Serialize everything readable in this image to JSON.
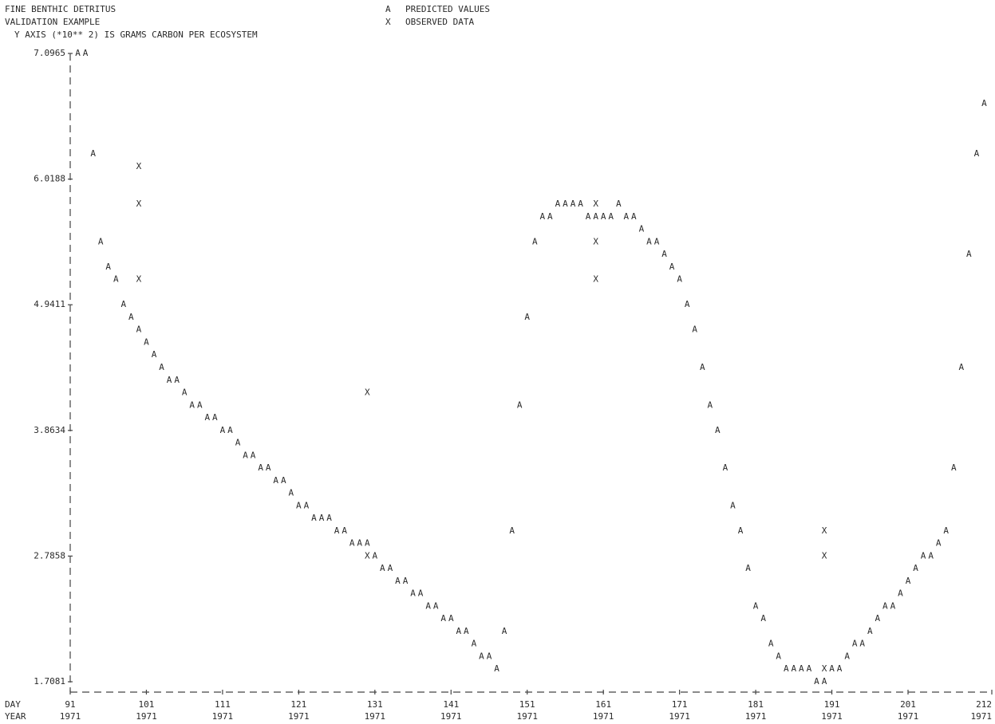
{
  "chart_data": {
    "type": "scatter",
    "title": "FINE BENTHIC DETRITUS",
    "subtitle": "VALIDATION EXAMPLE",
    "y_label": "Y AXIS (*10** 2) IS GRAMS CARBON PER ECOSYSTEM",
    "x_row_labels": [
      "DAY",
      "YEAR"
    ],
    "xlim": [
      91,
      212
    ],
    "xticks": [
      91,
      101,
      111,
      121,
      131,
      141,
      151,
      161,
      171,
      181,
      191,
      201,
      212
    ],
    "xtick_years": [
      "1971",
      "1971",
      "1971",
      "1971",
      "1971",
      "1971",
      "1971",
      "1971",
      "1971",
      "1971",
      "1971",
      "1971",
      "1971"
    ],
    "ylim": [
      1.7081,
      7.0965
    ],
    "yticks": [
      7.0965,
      6.0188,
      4.9411,
      3.8634,
      2.7858,
      1.7081
    ],
    "series": [
      {
        "name": "PREDICTED VALUES",
        "marker": "A",
        "color": "#2a2a2a",
        "x": [
          92,
          93,
          94,
          95,
          96,
          97,
          98,
          99,
          100,
          101,
          102,
          103,
          104,
          105,
          106,
          107,
          108,
          109,
          110,
          111,
          112,
          113,
          114,
          115,
          116,
          117,
          118,
          119,
          120,
          121,
          122,
          123,
          124,
          125,
          126,
          127,
          128,
          129,
          130,
          131,
          132,
          133,
          134,
          135,
          136,
          137,
          138,
          139,
          140,
          141,
          142,
          143,
          144,
          145,
          146,
          147,
          148,
          149,
          150,
          151,
          152,
          153,
          154,
          155,
          156,
          157,
          158,
          159,
          160,
          161,
          162,
          163,
          164,
          165,
          166,
          167,
          168,
          169,
          170,
          171,
          172,
          173,
          174,
          175,
          176,
          177,
          178,
          179,
          180,
          181,
          182,
          183,
          184,
          185,
          186,
          187,
          188,
          189,
          190,
          191,
          192,
          193,
          194,
          195,
          196,
          197,
          198,
          199,
          200,
          201,
          202,
          203,
          204,
          205,
          206,
          207,
          208,
          209,
          210,
          211
        ],
        "values": [
          7.0965,
          7.0965,
          6.2343,
          5.48,
          5.2644,
          5.1567,
          4.9411,
          4.8334,
          4.7256,
          4.6178,
          4.51,
          4.4023,
          4.2945,
          4.2945,
          4.1867,
          4.0789,
          4.0789,
          3.9712,
          3.9712,
          3.8634,
          3.8634,
          3.7556,
          3.6479,
          3.6479,
          3.5401,
          3.5401,
          3.4323,
          3.4323,
          3.3245,
          3.2168,
          3.2168,
          3.109,
          3.109,
          3.109,
          3.0012,
          3.0012,
          2.8935,
          2.8935,
          2.8935,
          2.7857,
          2.6779,
          2.6779,
          2.5702,
          2.5702,
          2.4624,
          2.4624,
          2.3546,
          2.3546,
          2.2468,
          2.2468,
          2.1391,
          2.1391,
          2.0313,
          1.9235,
          1.9235,
          1.8158,
          2.1391,
          3.0012,
          4.0789,
          4.8334,
          5.48,
          5.6955,
          5.6955,
          5.8033,
          5.8033,
          5.8033,
          5.8033,
          5.6955,
          5.6955,
          5.6955,
          5.6955,
          5.8033,
          5.6955,
          5.6955,
          5.5877,
          5.48,
          5.48,
          5.3722,
          5.2644,
          5.1567,
          4.9411,
          4.7256,
          4.4023,
          4.0789,
          3.8634,
          3.5401,
          3.2168,
          3.0012,
          2.6779,
          2.3546,
          2.2468,
          2.0313,
          1.9235,
          1.8158,
          1.8158,
          1.8158,
          1.8158,
          1.708,
          1.708,
          1.8158,
          1.8158,
          1.9235,
          2.0313,
          2.0313,
          2.1391,
          2.2468,
          2.3546,
          2.3546,
          2.4624,
          2.5702,
          2.6779,
          2.7857,
          2.7857,
          2.8935,
          3.0012,
          3.5401,
          4.4023,
          5.3722,
          6.2343,
          6.6654
        ]
      },
      {
        "name": "OBSERVED DATA",
        "marker": "X",
        "color": "#2a2a2a",
        "x": [
          100,
          100,
          100,
          130,
          130,
          160,
          160,
          160,
          190,
          190,
          190
        ],
        "values": [
          6.1266,
          5.8033,
          5.1567,
          4.1867,
          2.7857,
          5.8033,
          5.48,
          5.1567,
          3.0012,
          2.7857,
          1.8158
        ]
      }
    ]
  }
}
